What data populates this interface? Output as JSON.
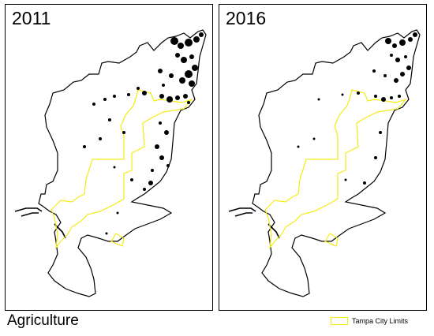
{
  "panels": [
    {
      "year": "2011",
      "agriculture_density": "high"
    },
    {
      "year": "2016",
      "agriculture_density": "lower"
    }
  ],
  "theme_title": "Agriculture",
  "legend": {
    "label": "Tampa City Limits",
    "swatch_color": "#f2ec14",
    "swatch_icon": "outline-rectangle"
  },
  "colors": {
    "county_boundary": "#000000",
    "agriculture_patches": "#000000",
    "city_limits": "#f2ec14",
    "background": "#ffffff"
  }
}
